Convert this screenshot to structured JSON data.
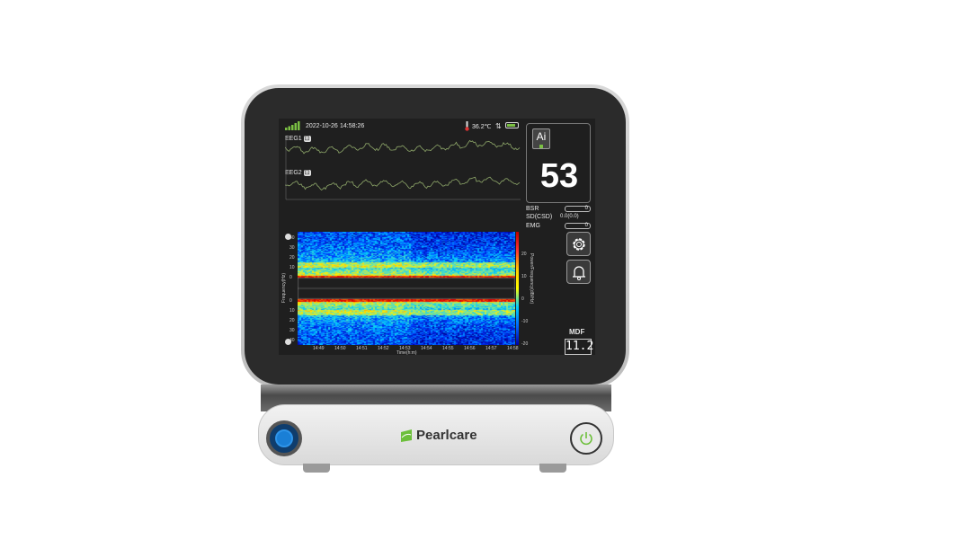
{
  "status": {
    "date": "2022-10-26",
    "time": "14:58:26",
    "temperature": "36.2℃",
    "signal_bars": 5,
    "battery_level": 0.8
  },
  "channels": [
    {
      "label": "EEG1",
      "badge": "⊡"
    },
    {
      "label": "EEG2",
      "badge": "⊡"
    }
  ],
  "index": {
    "ai_label": "Ai",
    "value": "53"
  },
  "params": [
    {
      "label": "BSR",
      "value": "0"
    },
    {
      "label": "SD(CSD)",
      "value": "0.0(0.0)"
    },
    {
      "label": "EMG",
      "value": "0"
    }
  ],
  "spectrogram": {
    "y_ticks_top": [
      "40",
      "30",
      "20",
      "10",
      "0"
    ],
    "y_ticks_bottom": [
      "0",
      "10",
      "20",
      "30",
      "40"
    ],
    "y_label": "Frequency(Hz)",
    "x_ticks": [
      "14:49",
      "14:50",
      "14:51",
      "14:52",
      "14:53",
      "14:54",
      "14:55",
      "14:56",
      "14:57",
      "14:58"
    ],
    "x_label": "Time(h:m)",
    "colorbar_ticks": [
      "20",
      "10",
      "0",
      "-10",
      "-20"
    ],
    "colorbar_label": "Power/Frequency(dB/Hz)"
  },
  "mdf": {
    "label": "MDF",
    "value": "11.2"
  },
  "brand": {
    "name": "Pearlcare"
  },
  "colors": {
    "wave": "#8fa86a",
    "accent_green": "#6cbf3a",
    "port_blue": "#1a7fd6"
  }
}
